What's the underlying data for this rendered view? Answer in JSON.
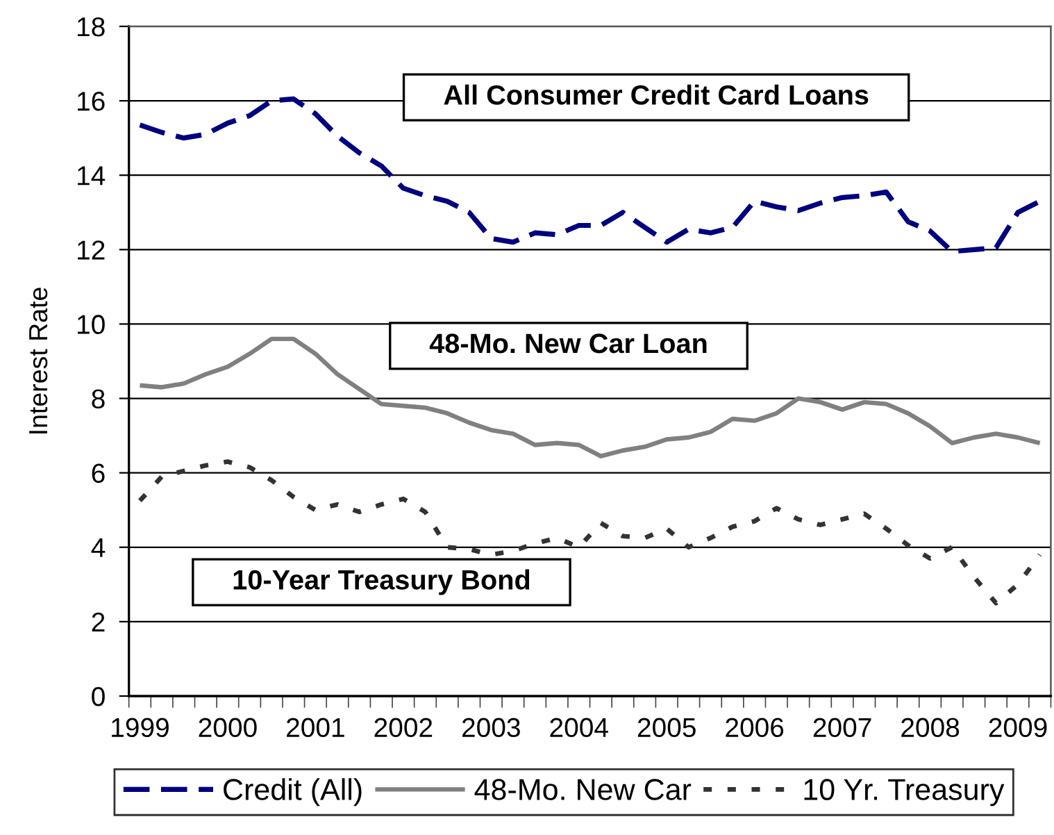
{
  "chart_data": {
    "type": "line",
    "ylabel": "Interest Rate",
    "categories": [
      "1999",
      null,
      null,
      null,
      "2000",
      null,
      null,
      null,
      "2001",
      null,
      null,
      null,
      "2002",
      null,
      null,
      null,
      "2003",
      null,
      null,
      null,
      "2004",
      null,
      null,
      null,
      "2005",
      null,
      null,
      null,
      "2006",
      null,
      null,
      null,
      "2007",
      null,
      null,
      null,
      "2008",
      null,
      null,
      null,
      "2009",
      null
    ],
    "series": [
      {
        "name": "Credit (All)",
        "color": "#000080",
        "line_style": "dashed",
        "values": [
          15.35,
          15.15,
          15.0,
          15.1,
          15.4,
          15.6,
          16.0,
          16.05,
          15.65,
          15.05,
          14.6,
          14.25,
          13.65,
          13.45,
          13.3,
          13.0,
          12.3,
          12.2,
          12.45,
          12.4,
          12.65,
          12.65,
          13.0,
          12.6,
          12.2,
          12.55,
          12.45,
          12.6,
          13.3,
          13.15,
          13.05,
          13.25,
          13.4,
          13.45,
          13.55,
          12.75,
          12.5,
          11.95,
          12.0,
          12.05,
          13.0,
          13.3
        ]
      },
      {
        "name": "48-Mo. New Car",
        "color": "#808080",
        "line_style": "solid",
        "values": [
          8.35,
          8.3,
          8.4,
          8.65,
          8.85,
          9.2,
          9.6,
          9.6,
          9.2,
          8.65,
          8.25,
          7.85,
          7.8,
          7.75,
          7.6,
          7.35,
          7.15,
          7.05,
          6.75,
          6.8,
          6.75,
          6.45,
          6.6,
          6.7,
          6.9,
          6.95,
          7.1,
          7.45,
          7.4,
          7.6,
          8.0,
          7.9,
          7.7,
          7.9,
          7.85,
          7.6,
          7.25,
          6.8,
          6.95,
          7.05,
          6.95,
          6.8
        ]
      },
      {
        "name": "10 Yr. Treasury",
        "color": "#333333",
        "line_style": "dotted",
        "values": [
          5.25,
          5.9,
          6.05,
          6.2,
          6.3,
          6.15,
          5.8,
          5.35,
          5.0,
          5.15,
          4.95,
          5.15,
          5.3,
          4.95,
          4.0,
          3.95,
          3.8,
          3.9,
          4.1,
          4.25,
          4.0,
          4.65,
          4.3,
          4.25,
          4.5,
          4.0,
          4.25,
          4.55,
          4.7,
          5.05,
          4.75,
          4.6,
          4.75,
          4.9,
          4.5,
          4.05,
          3.7,
          4.0,
          3.2,
          2.5,
          3.0,
          3.8
        ]
      }
    ],
    "ylim": [
      0,
      18
    ],
    "yticks": [
      0,
      2,
      4,
      6,
      8,
      10,
      12,
      14,
      16,
      18
    ],
    "grid": "y",
    "legend": "bottom",
    "annotations": [
      "All Consumer Credit Card Loans",
      "48-Mo. New Car Loan",
      "10-Year Treasury Bond"
    ]
  }
}
